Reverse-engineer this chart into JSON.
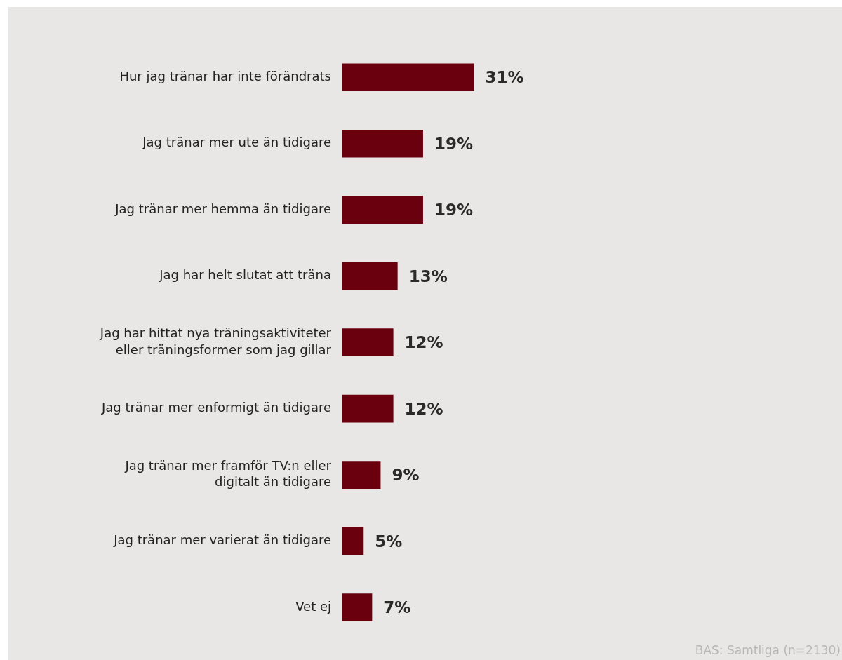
{
  "chart_data": {
    "type": "bar",
    "orientation": "horizontal",
    "tick_labels": "y",
    "categories": [
      "Hur jag tränar har inte förändrats",
      "Jag tränar mer ute än tidigare",
      "Jag tränar mer hemma än tidigare",
      "Jag har helt slutat att träna",
      "Jag har hittat nya träningsaktiviteter eller träningsformer som jag gillar",
      "Jag tränar mer enformigt än tidigare",
      "Jag tränar mer framför TV:n eller digitalt än tidigare",
      "Jag tränar mer varierat än tidigare",
      "Vet ej"
    ],
    "values": [
      31,
      19,
      19,
      13,
      12,
      12,
      9,
      5,
      7
    ],
    "value_labels": [
      "31%",
      "19%",
      "19%",
      "13%",
      "12%",
      "12%",
      "9%",
      "5%",
      "7%"
    ],
    "color": "#6a000e",
    "grid": false,
    "legend": false,
    "annotations": [
      "BAS: Samtliga (n=2130)"
    ]
  }
}
